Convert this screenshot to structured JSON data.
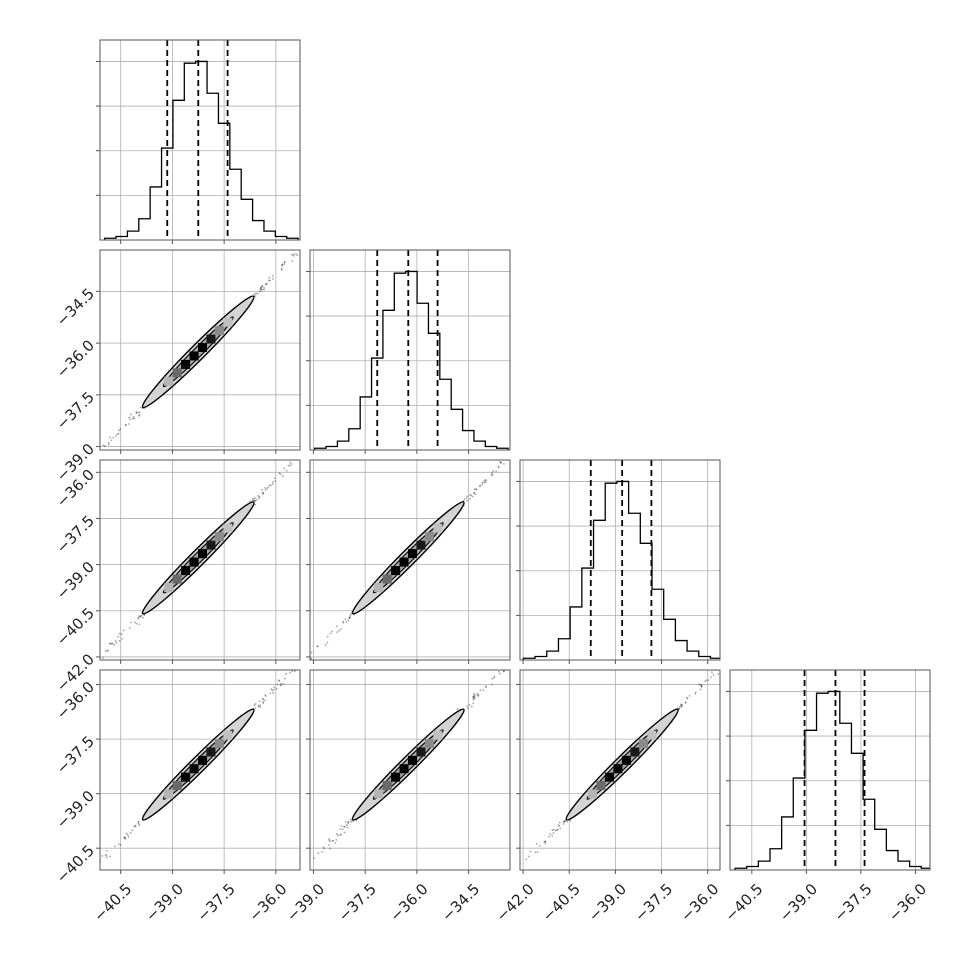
{
  "chart_data": {
    "type": "corner",
    "n_params": 4,
    "grid": true,
    "colors": {
      "line": "#000000",
      "grid": "#b0b0b0",
      "frame": "#555555",
      "contour_fill_outer": "#d4d4d4",
      "contour_fill_inner": "#a6a6a6"
    },
    "params": [
      {
        "range": [
          -41.1,
          -35.3
        ],
        "ticks": [
          -40.5,
          -39.0,
          -37.5,
          -36.0
        ],
        "tick_labels": [
          "−40.5",
          "−39.0",
          "−37.5",
          "−36.0"
        ]
      },
      {
        "range": [
          -39.1,
          -33.3
        ],
        "ticks": [
          -39.0,
          -37.5,
          -36.0,
          -34.5
        ],
        "tick_labels": [
          "−39.0",
          "−37.5",
          "−36.0",
          "−34.5"
        ]
      },
      {
        "range": [
          -42.1,
          -35.6
        ],
        "ticks": [
          -42.0,
          -40.5,
          -39.0,
          -37.5,
          -36.0
        ],
        "tick_labels": [
          "−42.0",
          "−40.5",
          "−39.0",
          "−37.5",
          "−36.0"
        ]
      },
      {
        "range": [
          -41.1,
          -35.6
        ],
        "ticks": [
          -40.5,
          -39.0,
          -37.5,
          -36.0
        ],
        "tick_labels": [
          "−40.5",
          "−39.0",
          "−37.5",
          "−36.0"
        ]
      }
    ],
    "diagonal": [
      {
        "centers": [
          -40.8,
          -40.47,
          -40.14,
          -39.81,
          -39.48,
          -39.15,
          -38.82,
          -38.49,
          -38.16,
          -37.83,
          -37.5,
          -37.17,
          -36.84,
          -36.51,
          -36.18,
          -35.85,
          -35.52
        ],
        "counts": [
          1,
          2,
          5,
          12,
          30,
          52,
          79,
          100,
          101,
          83,
          66,
          40,
          23,
          11,
          5,
          2,
          1
        ],
        "quantiles": [
          -39.15,
          -38.25,
          -37.4
        ]
      },
      {
        "centers": [
          -38.8,
          -38.47,
          -38.14,
          -37.81,
          -37.48,
          -37.15,
          -36.82,
          -36.49,
          -36.16,
          -35.83,
          -35.5,
          -35.17,
          -34.84,
          -34.51,
          -34.18,
          -33.85,
          -33.52
        ],
        "counts": [
          1,
          2,
          5,
          12,
          30,
          52,
          79,
          100,
          101,
          83,
          66,
          40,
          23,
          11,
          5,
          2,
          1
        ],
        "quantiles": [
          -37.15,
          -36.25,
          -35.4
        ]
      },
      {
        "centers": [
          -41.8,
          -41.42,
          -41.04,
          -40.66,
          -40.28,
          -39.9,
          -39.52,
          -39.14,
          -38.76,
          -38.38,
          -38.0,
          -37.62,
          -37.24,
          -36.86,
          -36.48,
          -36.1,
          -35.72
        ],
        "counts": [
          1,
          2,
          5,
          12,
          30,
          52,
          79,
          100,
          101,
          83,
          66,
          40,
          23,
          11,
          5,
          2,
          1
        ],
        "quantiles": [
          -39.8,
          -38.78,
          -37.83
        ]
      },
      {
        "centers": [
          -40.8,
          -40.48,
          -40.16,
          -39.84,
          -39.52,
          -39.2,
          -38.88,
          -38.56,
          -38.24,
          -37.92,
          -37.6,
          -37.28,
          -36.96,
          -36.64,
          -36.32,
          -36.0,
          -35.68
        ],
        "counts": [
          1,
          2,
          5,
          12,
          30,
          52,
          79,
          100,
          101,
          83,
          66,
          40,
          23,
          11,
          5,
          2,
          1
        ],
        "quantiles": [
          -39.05,
          -38.2,
          -37.4
        ]
      }
    ]
  }
}
